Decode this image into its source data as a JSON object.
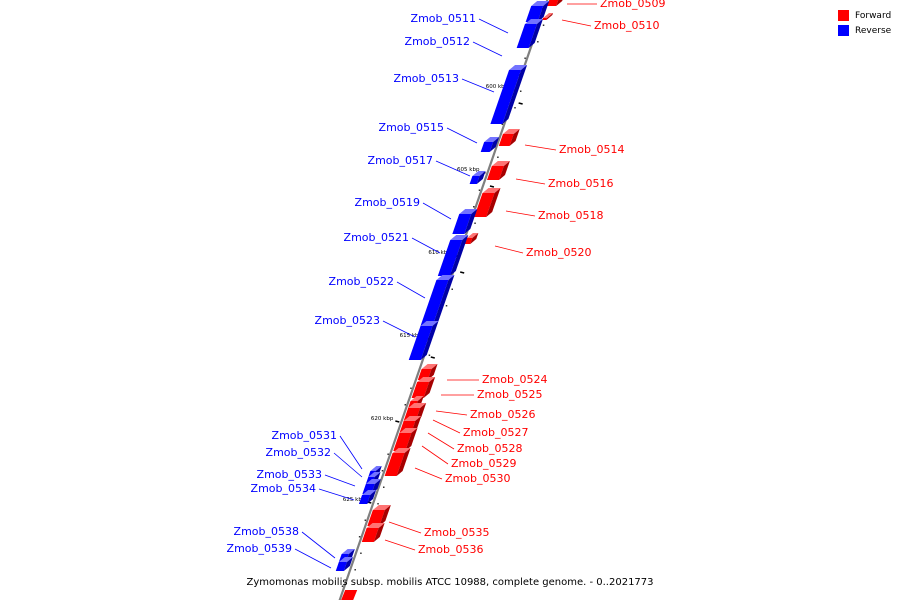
{
  "legend": {
    "forward": {
      "label": "Forward",
      "color": "#ff0000"
    },
    "reverse": {
      "label": "Reverse",
      "color": "#0000ff"
    }
  },
  "caption": "Zymomonas mobilis subsp. mobilis ATCC 10988, complete genome. - 0..2021773",
  "colors": {
    "forward": "#ff0000",
    "reverse": "#0000ff",
    "axis": "#7f7f7f"
  },
  "axis_marks": [
    {
      "label": "600 kbp"
    },
    {
      "label": "605 kbp"
    },
    {
      "label": "610 kbp"
    },
    {
      "label": "615 kbp"
    },
    {
      "label": "620 kbp"
    },
    {
      "label": "625 kbp"
    }
  ],
  "genes": [
    {
      "name": "Zmob_0509",
      "strand": "forward"
    },
    {
      "name": "Zmob_0510",
      "strand": "forward"
    },
    {
      "name": "Zmob_0511",
      "strand": "reverse"
    },
    {
      "name": "Zmob_0512",
      "strand": "reverse"
    },
    {
      "name": "Zmob_0513",
      "strand": "reverse"
    },
    {
      "name": "Zmob_0514",
      "strand": "forward"
    },
    {
      "name": "Zmob_0515",
      "strand": "reverse"
    },
    {
      "name": "Zmob_0516",
      "strand": "forward"
    },
    {
      "name": "Zmob_0517",
      "strand": "reverse"
    },
    {
      "name": "Zmob_0518",
      "strand": "forward"
    },
    {
      "name": "Zmob_0519",
      "strand": "reverse"
    },
    {
      "name": "Zmob_0520",
      "strand": "forward"
    },
    {
      "name": "Zmob_0521",
      "strand": "reverse"
    },
    {
      "name": "Zmob_0522",
      "strand": "reverse"
    },
    {
      "name": "Zmob_0523",
      "strand": "reverse"
    },
    {
      "name": "Zmob_0524",
      "strand": "forward"
    },
    {
      "name": "Zmob_0525",
      "strand": "forward"
    },
    {
      "name": "Zmob_0526",
      "strand": "forward"
    },
    {
      "name": "Zmob_0527",
      "strand": "forward"
    },
    {
      "name": "Zmob_0528",
      "strand": "forward"
    },
    {
      "name": "Zmob_0529",
      "strand": "forward"
    },
    {
      "name": "Zmob_0530",
      "strand": "forward"
    },
    {
      "name": "Zmob_0531",
      "strand": "reverse"
    },
    {
      "name": "Zmob_0532",
      "strand": "reverse"
    },
    {
      "name": "Zmob_0533",
      "strand": "reverse"
    },
    {
      "name": "Zmob_0534",
      "strand": "reverse"
    },
    {
      "name": "Zmob_0535",
      "strand": "forward"
    },
    {
      "name": "Zmob_0536",
      "strand": "forward"
    },
    {
      "name": "Zmob_0538",
      "strand": "reverse"
    },
    {
      "name": "Zmob_0539",
      "strand": "reverse"
    }
  ]
}
